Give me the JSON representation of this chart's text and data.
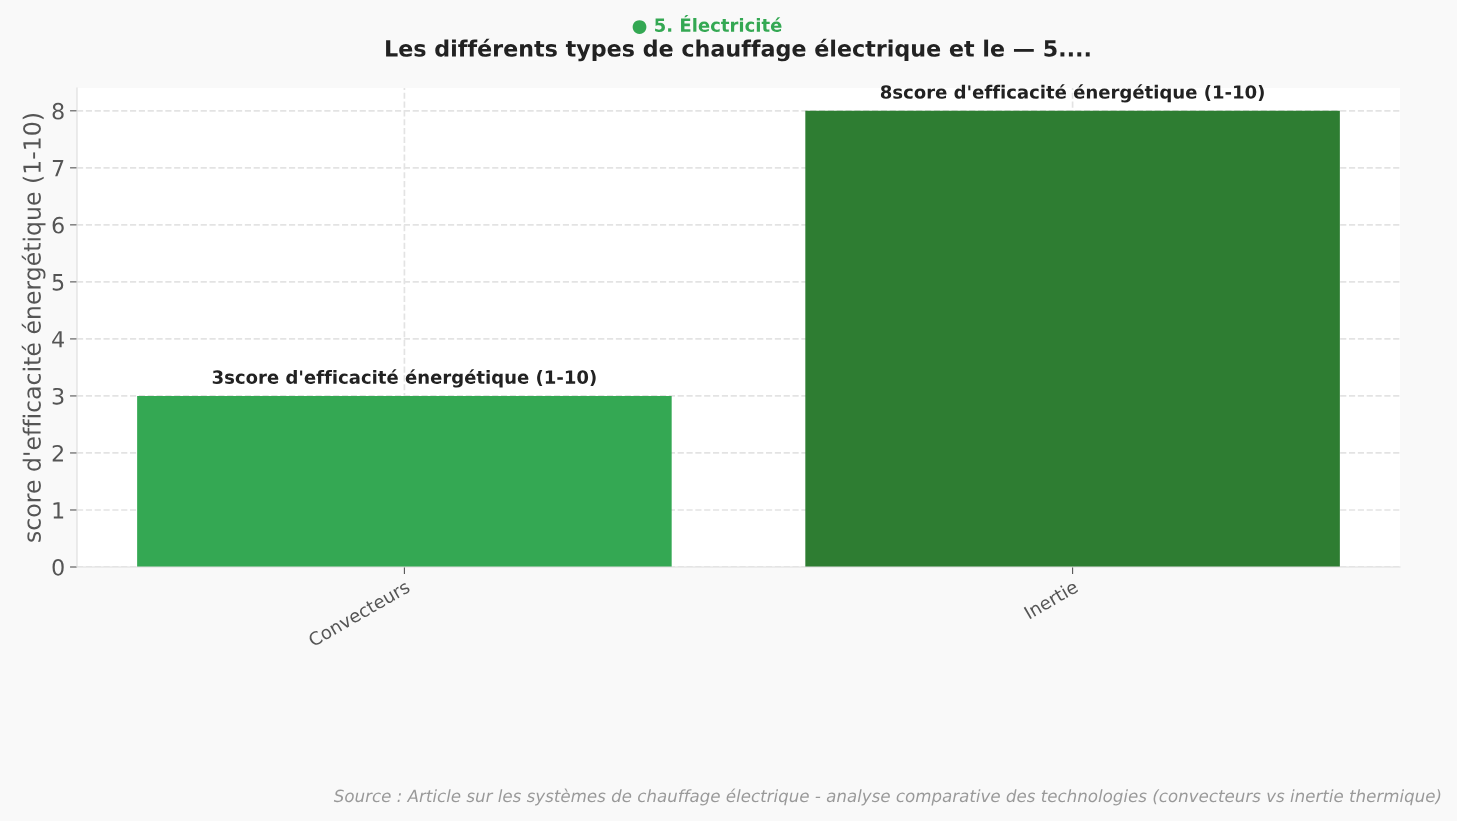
{
  "chart_data": {
    "type": "bar",
    "subtitle": "● 5. Électricité",
    "title": "Les différents types de chauffage électrique et le — 5....",
    "ylabel": "score d'efficacité énergétique (1-10)",
    "categories": [
      "Convecteurs",
      "Inertie"
    ],
    "values": [
      3,
      8
    ],
    "colors": [
      "#34a853",
      "#2e7d32"
    ],
    "value_labels": [
      "3score d'efficacité énergétique (1-10)",
      "8score d'efficacité énergétique (1-10)"
    ],
    "ylim": [
      0,
      8.4
    ],
    "yticks": [
      0,
      1,
      2,
      3,
      4,
      5,
      6,
      7,
      8
    ],
    "grid": true,
    "annotations": [
      "Source : Article sur les systèmes de chauffage électrique - analyse comparative des technologies (convecteurs vs inertie thermique)"
    ]
  }
}
